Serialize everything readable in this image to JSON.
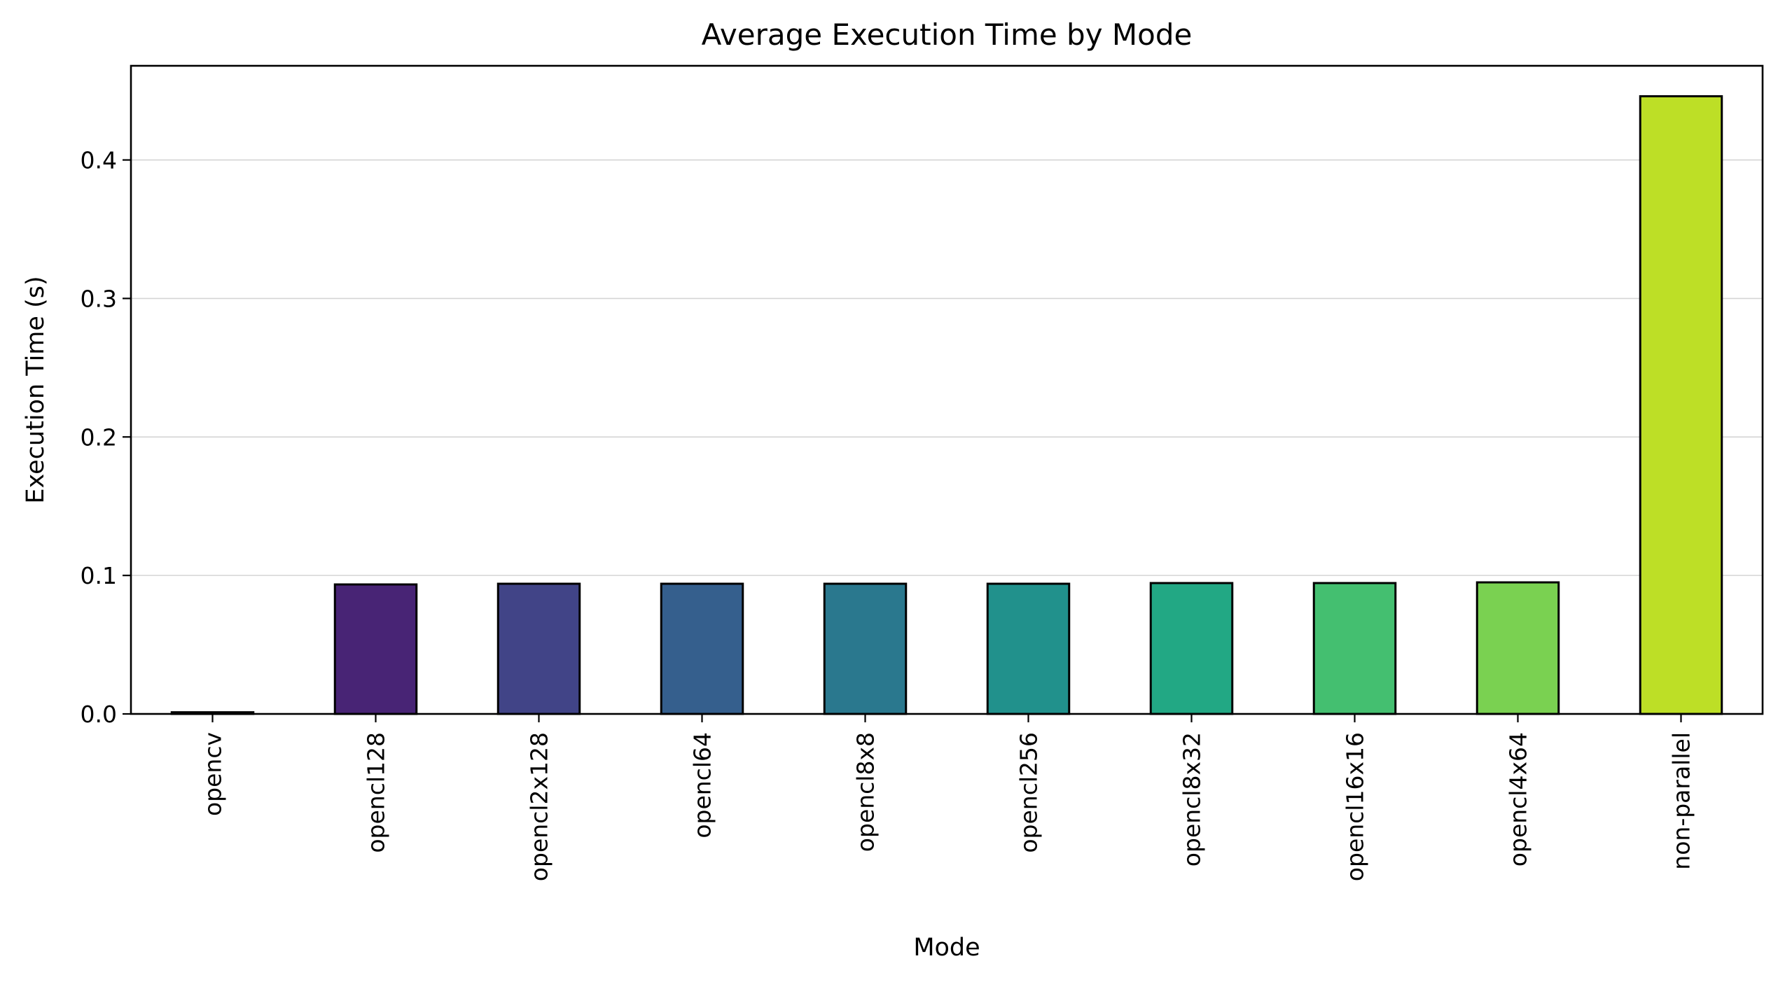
{
  "chart_data": {
    "type": "bar",
    "title": "Average Execution Time by Mode",
    "xlabel": "Mode",
    "ylabel": "Execution Time (s)",
    "categories": [
      "opencv",
      "opencl128",
      "opencl2x128",
      "opencl64",
      "opencl8x8",
      "opencl256",
      "opencl8x32",
      "opencl16x16",
      "opencl4x64",
      "non-parallel"
    ],
    "values": [
      0.0012,
      0.0935,
      0.094,
      0.094,
      0.094,
      0.094,
      0.0945,
      0.0945,
      0.095,
      0.446
    ],
    "colors": [
      "#440154",
      "#482475",
      "#414487",
      "#355f8d",
      "#2a788e",
      "#21918c",
      "#22a884",
      "#44bf70",
      "#7ad151",
      "#bddf26"
    ],
    "ylim": [
      0,
      0.468
    ],
    "yticks": [
      0.0,
      0.1,
      0.2,
      0.3,
      0.4
    ],
    "ytick_labels": [
      "0.0",
      "0.1",
      "0.2",
      "0.3",
      "0.4"
    ],
    "grid": "y",
    "legend": "none"
  }
}
